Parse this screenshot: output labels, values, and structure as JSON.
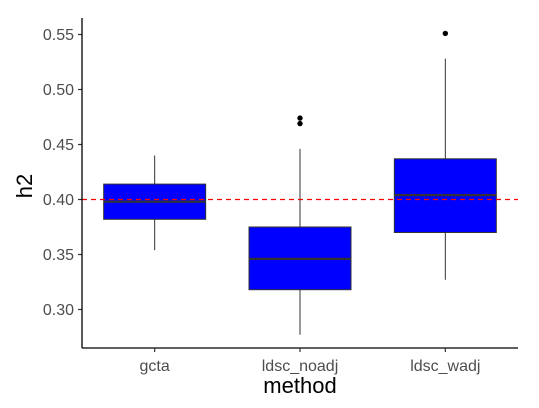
{
  "chart_data": {
    "type": "box",
    "title": "",
    "xlabel": "method",
    "ylabel": "h2",
    "ylim": [
      0.265,
      0.565
    ],
    "yticks": [
      0.3,
      0.35,
      0.4,
      0.45,
      0.5,
      0.55
    ],
    "ytick_labels": [
      "0.30",
      "0.35",
      "0.40",
      "0.45",
      "0.50",
      "0.55"
    ],
    "categories": [
      "gcta",
      "ldsc_noadj",
      "ldsc_wadj"
    ],
    "boxes": [
      {
        "category": "gcta",
        "whisker_low": 0.354,
        "q1": 0.382,
        "median": 0.398,
        "q3": 0.414,
        "whisker_high": 0.44,
        "outliers": []
      },
      {
        "category": "ldsc_noadj",
        "whisker_low": 0.277,
        "q1": 0.318,
        "median": 0.346,
        "q3": 0.375,
        "whisker_high": 0.446,
        "outliers": [
          0.469,
          0.474
        ]
      },
      {
        "category": "ldsc_wadj",
        "whisker_low": 0.327,
        "q1": 0.37,
        "median": 0.404,
        "q3": 0.437,
        "whisker_high": 0.528,
        "outliers": [
          0.551
        ]
      }
    ],
    "reference_line": {
      "y": 0.4,
      "style": "dashed",
      "color": "#ff0000"
    },
    "box_fill": "#0000ff",
    "box_edge": "#333333",
    "grid": false,
    "legend": "none"
  }
}
